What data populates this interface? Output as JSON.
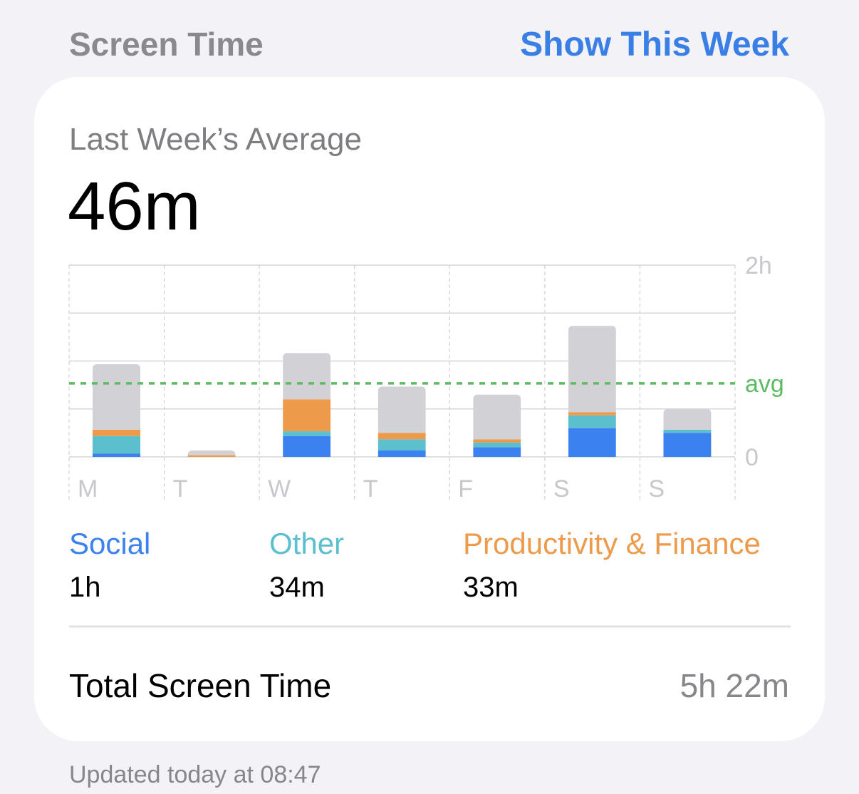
{
  "header": {
    "title": "Screen Time",
    "action": "Show This Week"
  },
  "card": {
    "label": "Last Week’s Average",
    "value": "46m",
    "chart": {
      "type": "stacked_bar",
      "categories": [
        "M",
        "T",
        "W",
        "T",
        "F",
        "S",
        "S"
      ],
      "series": [
        {
          "name": "Social",
          "color": "#3b82f0",
          "values": [
            2,
            0,
            13,
            4,
            6,
            18,
            15
          ]
        },
        {
          "name": "Other",
          "color": "#5bbfcd",
          "values": [
            11,
            0,
            3,
            7,
            3,
            8,
            2
          ]
        },
        {
          "name": "Productivity & Finance",
          "color": "#ed9a4a",
          "values": [
            4,
            1,
            20,
            4,
            2,
            2,
            0
          ]
        },
        {
          "color": "#d1d1d6",
          "values": [
            41,
            3,
            29,
            29,
            28,
            54,
            13
          ]
        }
      ],
      "ylim": [
        0,
        120
      ],
      "yticks": [
        0,
        {
          "value": 120,
          "label": "2h"
        }
      ],
      "gridlines": [
        30,
        60,
        90
      ],
      "average": {
        "value": 46,
        "label": "avg",
        "color": "#5dbb63"
      }
    },
    "totals": [
      "1h",
      "34m",
      "33m"
    ],
    "total": {
      "label": "Total Screen Time",
      "value": "5h 22m"
    }
  },
  "footer": "Updated today at 08:47"
}
